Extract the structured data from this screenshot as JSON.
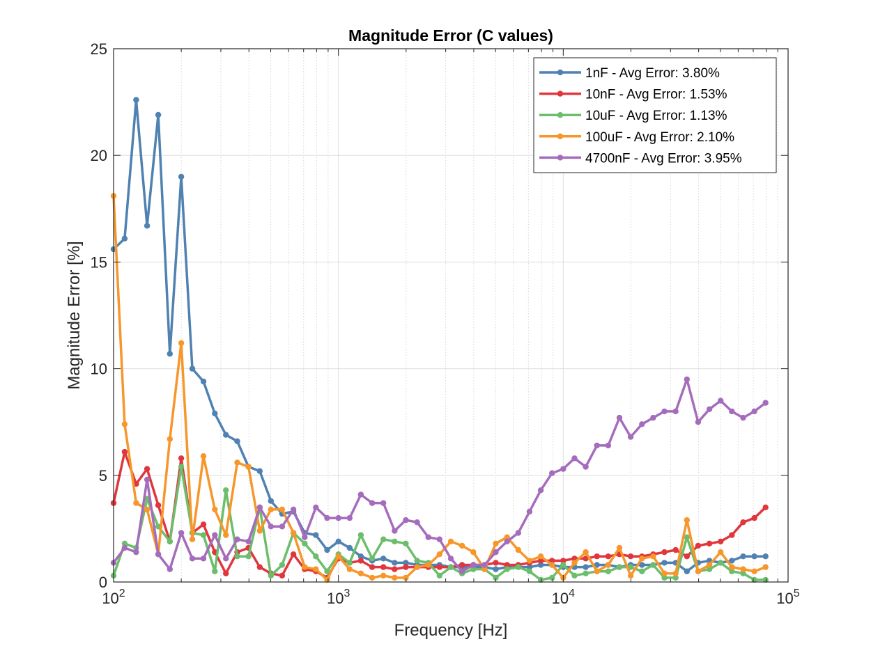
{
  "chart_data": {
    "type": "line",
    "title": "Magnitude Error (C values)",
    "xlabel": "Frequency [Hz]",
    "ylabel": "Magnitude Error [%]",
    "x_scale": "log",
    "xlim": [
      100,
      100000
    ],
    "ylim": [
      0,
      25
    ],
    "x_ticks": [
      100,
      1000,
      10000,
      100000
    ],
    "x_tick_labels": [
      {
        "base": "10",
        "exp": "2"
      },
      {
        "base": "10",
        "exp": "3"
      },
      {
        "base": "10",
        "exp": "4"
      },
      {
        "base": "10",
        "exp": "5"
      }
    ],
    "y_ticks": [
      0,
      5,
      10,
      15,
      20,
      25
    ],
    "y_tick_labels": [
      "0",
      "5",
      "10",
      "15",
      "20",
      "25"
    ],
    "grid": true,
    "legend_position": "top-right",
    "x": [
      100,
      112,
      126,
      141,
      158,
      178,
      200,
      224,
      251,
      282,
      316,
      355,
      398,
      447,
      501,
      562,
      631,
      708,
      794,
      891,
      1000,
      1122,
      1259,
      1413,
      1585,
      1778,
      1995,
      2239,
      2512,
      2818,
      3162,
      3548,
      3981,
      4467,
      5012,
      5623,
      6310,
      7079,
      7943,
      8913,
      10000,
      11220,
      12589,
      14125,
      15849,
      17783,
      19953,
      22387,
      25119,
      28184,
      31623,
      35481,
      39811,
      44668,
      50119,
      56234,
      63096,
      70795,
      79433
    ],
    "series": [
      {
        "name": "1nF - Avg Error: 3.80%",
        "color": "#4f81b1",
        "values": [
          15.6,
          16.1,
          22.6,
          16.7,
          21.9,
          10.7,
          19.0,
          10.0,
          9.4,
          7.9,
          6.9,
          6.6,
          5.4,
          5.2,
          3.8,
          3.2,
          3.3,
          2.3,
          2.2,
          1.5,
          1.9,
          1.6,
          1.2,
          1.0,
          1.1,
          0.9,
          0.9,
          0.8,
          0.8,
          0.8,
          0.7,
          0.7,
          0.7,
          0.7,
          0.6,
          0.7,
          0.7,
          0.7,
          0.8,
          0.8,
          0.7,
          0.7,
          0.7,
          0.8,
          0.8,
          0.7,
          0.8,
          0.8,
          0.8,
          0.9,
          0.9,
          0.5,
          0.9,
          1.0,
          0.9,
          1.0,
          1.2,
          1.2,
          1.2
        ]
      },
      {
        "name": "10nF - Avg Error: 1.53%",
        "color": "#e0363d",
        "values": [
          3.7,
          6.1,
          4.6,
          5.3,
          3.6,
          1.9,
          5.8,
          2.3,
          2.7,
          1.4,
          0.4,
          1.4,
          1.6,
          0.7,
          0.4,
          0.3,
          1.3,
          0.6,
          0.5,
          0.2,
          1.1,
          0.9,
          1.0,
          0.7,
          0.7,
          0.6,
          0.7,
          0.7,
          0.7,
          0.7,
          0.7,
          0.8,
          0.8,
          0.8,
          0.9,
          0.8,
          0.8,
          0.9,
          1.0,
          1.0,
          1.0,
          1.1,
          1.1,
          1.2,
          1.2,
          1.3,
          1.2,
          1.2,
          1.3,
          1.4,
          1.5,
          1.2,
          1.7,
          1.8,
          1.9,
          2.2,
          2.8,
          3.0,
          3.5
        ]
      },
      {
        "name": "10uF - Avg Error: 1.13%",
        "color": "#6cbd6c",
        "values": [
          0.3,
          1.8,
          1.6,
          3.9,
          2.6,
          1.9,
          5.4,
          2.3,
          2.2,
          0.5,
          4.3,
          1.2,
          1.2,
          3.5,
          0.3,
          0.8,
          2.3,
          1.8,
          1.2,
          0.5,
          1.3,
          0.9,
          2.2,
          1.1,
          2.0,
          1.9,
          1.8,
          1.0,
          0.9,
          0.3,
          0.7,
          0.4,
          0.6,
          0.6,
          0.2,
          0.6,
          0.7,
          0.5,
          0.1,
          0.2,
          0.8,
          0.3,
          0.4,
          0.5,
          0.5,
          0.7,
          0.7,
          0.5,
          0.8,
          0.2,
          0.2,
          2.1,
          0.5,
          0.6,
          0.9,
          0.5,
          0.4,
          0.1,
          0.1
        ]
      },
      {
        "name": "100uF - Avg Error: 2.10%",
        "color": "#f7962b",
        "values": [
          18.1,
          7.4,
          3.7,
          3.4,
          1.3,
          6.7,
          11.2,
          2.0,
          5.9,
          3.4,
          2.2,
          5.6,
          5.4,
          2.4,
          3.4,
          3.4,
          2.3,
          0.7,
          0.6,
          0.1,
          1.2,
          0.6,
          0.4,
          0.2,
          0.3,
          0.2,
          0.2,
          0.7,
          0.8,
          1.3,
          1.9,
          1.7,
          1.4,
          0.6,
          1.8,
          2.1,
          1.5,
          1.0,
          1.2,
          0.8,
          0.2,
          0.9,
          1.4,
          0.5,
          0.8,
          1.6,
          0.3,
          1.1,
          1.2,
          0.4,
          0.4,
          2.9,
          0.5,
          0.8,
          1.4,
          0.7,
          0.6,
          0.5,
          0.7
        ]
      },
      {
        "name": "4700nF - Avg Error: 3.95%",
        "color": "#a56cbc",
        "values": [
          0.9,
          1.6,
          1.4,
          4.8,
          1.3,
          0.6,
          2.3,
          1.1,
          1.1,
          2.2,
          1.1,
          2.0,
          1.9,
          3.5,
          2.6,
          2.6,
          3.4,
          2.1,
          3.5,
          3.0,
          3.0,
          3.0,
          4.1,
          3.7,
          3.7,
          2.4,
          2.9,
          2.8,
          2.1,
          2.0,
          1.1,
          0.5,
          0.8,
          0.8,
          1.4,
          1.9,
          2.3,
          3.3,
          4.3,
          5.1,
          5.3,
          5.8,
          5.4,
          6.4,
          6.4,
          7.7,
          6.8,
          7.4,
          7.7,
          8.0,
          8.0,
          9.5,
          7.5,
          8.1,
          8.5,
          8.0,
          7.7,
          8.0,
          8.4
        ]
      }
    ]
  }
}
